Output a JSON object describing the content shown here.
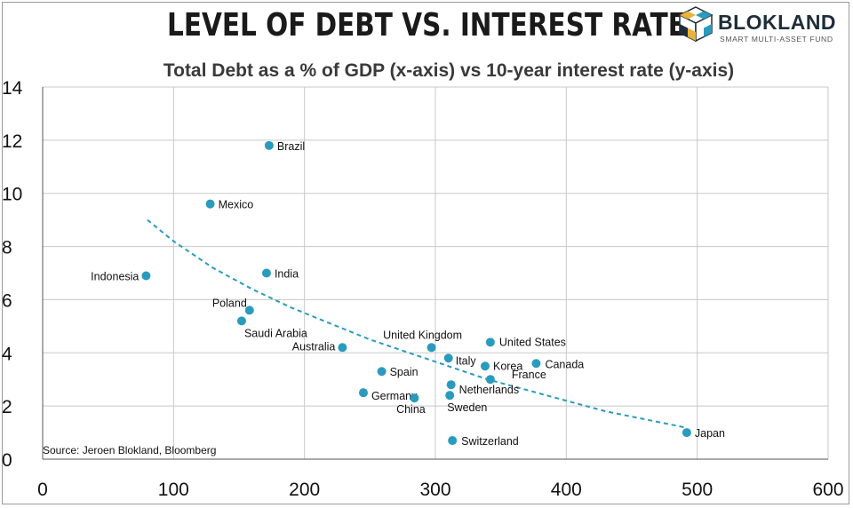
{
  "header": {
    "title": "LEVEL OF DEBT VS. INTEREST RATE",
    "subtitle": "Total Debt as a % of GDP (x-axis) vs 10-year interest rate (y-axis)"
  },
  "logo": {
    "name": "BLOKLAND",
    "tagline": "SMART MULTI-ASSET FUND"
  },
  "source": "Source: Jeroen Blokland, Bloomberg",
  "colors": {
    "points": "#2a9bbd",
    "trend": "#2a9bbd",
    "grid": "#c8c8c8"
  },
  "chart_data": {
    "type": "scatter",
    "xlim": [
      0,
      600
    ],
    "ylim": [
      0,
      14
    ],
    "x_ticks": [
      "0",
      "100",
      "200",
      "300",
      "400",
      "500",
      "600"
    ],
    "y_ticks": [
      "0",
      "2",
      "4",
      "6",
      "8",
      "10",
      "12",
      "14"
    ],
    "grid": true,
    "points": [
      {
        "label": "Brazil",
        "x": 173,
        "y": 11.8
      },
      {
        "label": "Mexico",
        "x": 128,
        "y": 9.6
      },
      {
        "label": "Indonesia",
        "x": 79,
        "y": 6.9
      },
      {
        "label": "India",
        "x": 171,
        "y": 7.0
      },
      {
        "label": "Poland",
        "x": 158,
        "y": 5.6
      },
      {
        "label": "Saudi Arabia",
        "x": 152,
        "y": 5.2
      },
      {
        "label": "Australia",
        "x": 229,
        "y": 4.2
      },
      {
        "label": "United Kingdom",
        "x": 297,
        "y": 4.2
      },
      {
        "label": "United States",
        "x": 342,
        "y": 4.4
      },
      {
        "label": "Italy",
        "x": 310,
        "y": 3.8
      },
      {
        "label": "Korea",
        "x": 338,
        "y": 3.5
      },
      {
        "label": "Canada",
        "x": 377,
        "y": 3.6
      },
      {
        "label": "Spain",
        "x": 259,
        "y": 3.3
      },
      {
        "label": "France",
        "x": 342,
        "y": 3.0
      },
      {
        "label": "Netherlands",
        "x": 312,
        "y": 2.8
      },
      {
        "label": "Germany",
        "x": 245,
        "y": 2.5
      },
      {
        "label": "China",
        "x": 284,
        "y": 2.3
      },
      {
        "label": "Sweden",
        "x": 311,
        "y": 2.4
      },
      {
        "label": "Switzerland",
        "x": 313,
        "y": 0.7
      },
      {
        "label": "Japan",
        "x": 492,
        "y": 1.0
      }
    ],
    "trendline": {
      "style": "dashed",
      "x": [
        80,
        100,
        130,
        160,
        190,
        220,
        250,
        280,
        310,
        340,
        370,
        400,
        430,
        460,
        490
      ],
      "y": [
        9.0,
        8.2,
        7.2,
        6.4,
        5.7,
        5.1,
        4.5,
        4.0,
        3.5,
        3.0,
        2.6,
        2.2,
        1.8,
        1.5,
        1.2
      ]
    }
  }
}
